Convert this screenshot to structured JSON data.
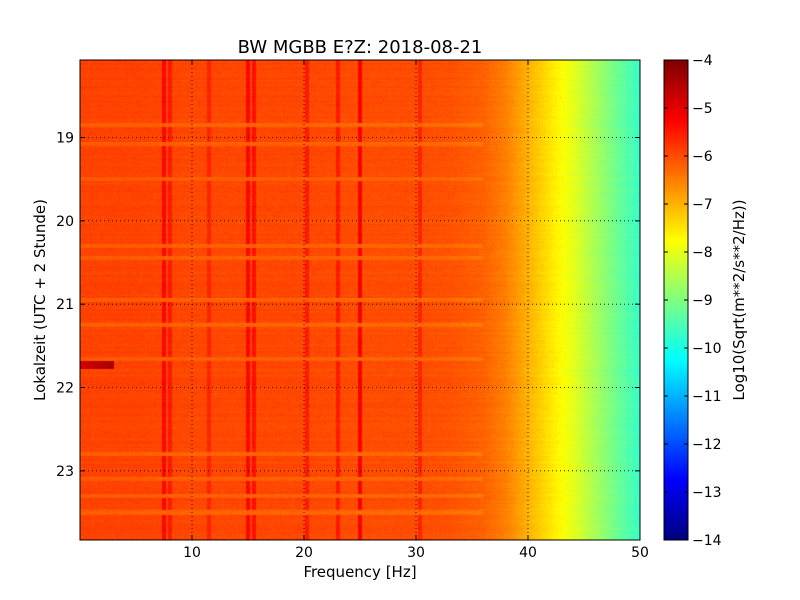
{
  "chart_data": {
    "type": "heatmap",
    "title": "BW MGBB E?Z: 2018-08-21",
    "xlabel": "Frequency [Hz]",
    "ylabel": "Lokalzeit (UTC + 2 Stunde)",
    "xlim": [
      0,
      50
    ],
    "ylim": [
      18.07,
      23.83
    ],
    "y_inverted": true,
    "x_ticks": [
      10,
      20,
      30,
      40,
      50
    ],
    "y_ticks": [
      19,
      20,
      21,
      22,
      23
    ],
    "grid": true,
    "grid_style": "dotted",
    "colormap": "jet",
    "colorbar": {
      "label": "Log10(Sqrt(m**2/s**2/Hz))",
      "range": [
        -14,
        -4
      ],
      "ticks": [
        -4,
        -5,
        -6,
        -7,
        -8,
        -9,
        -10,
        -11,
        -12,
        -13,
        -14
      ]
    },
    "spectrum_profile": {
      "frequency_hz": [
        0,
        5,
        10,
        15,
        20,
        25,
        30,
        33,
        36,
        38,
        40,
        42,
        44,
        46,
        48,
        50
      ],
      "level": [
        -5.9,
        -5.9,
        -5.95,
        -5.95,
        -5.95,
        -6.0,
        -6.0,
        -6.05,
        -6.2,
        -6.5,
        -7.0,
        -7.5,
        -8.0,
        -8.6,
        -9.2,
        -9.7
      ]
    },
    "spectral_lines_hz": [
      {
        "f": 7.5,
        "level": -5.3
      },
      {
        "f": 8.0,
        "level": -5.5
      },
      {
        "f": 11.5,
        "level": -5.6
      },
      {
        "f": 15.0,
        "level": -5.3
      },
      {
        "f": 15.5,
        "level": -5.4
      },
      {
        "f": 20.3,
        "level": -5.5
      },
      {
        "f": 23.0,
        "level": -5.5
      },
      {
        "f": 25.0,
        "level": -5.2
      },
      {
        "f": 30.4,
        "level": -5.6
      }
    ],
    "quiet_intervals_hours": [
      18.85,
      19.08,
      19.5,
      20.3,
      20.45,
      20.95,
      21.25,
      21.66,
      22.8,
      23.1,
      23.3,
      23.5
    ]
  }
}
